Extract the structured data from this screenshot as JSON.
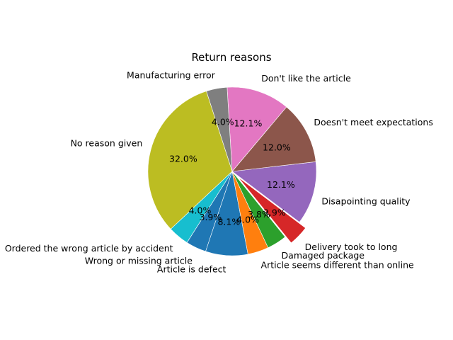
{
  "chart_data": {
    "type": "pie",
    "title": "Return reasons",
    "start_angle_deg": -37,
    "counterclock": true,
    "slices": [
      {
        "label": "Disapointing quality",
        "value": 12.1,
        "pct_label": "12.1%",
        "color": "#9467bd",
        "explode": false
      },
      {
        "label": "Doesn't meet expectations",
        "value": 12.0,
        "pct_label": "12.0%",
        "color": "#8c564b",
        "explode": false
      },
      {
        "label": "Don't like the article",
        "value": 12.1,
        "pct_label": "12.1%",
        "color": "#e377c2",
        "explode": false
      },
      {
        "label": "Manufacturing error",
        "value": 4.0,
        "pct_label": "4.0%",
        "color": "#7f7f7f",
        "explode": false
      },
      {
        "label": "No reason given",
        "value": 32.0,
        "pct_label": "32.0%",
        "color": "#bcbd22",
        "explode": false
      },
      {
        "label": "Ordered the wrong article by accident",
        "value": 4.0,
        "pct_label": "4.0%",
        "color": "#17becf",
        "explode": false
      },
      {
        "label": "Wrong or missing article",
        "value": 3.9,
        "pct_label": "3.9%",
        "color": "#1f77b4",
        "explode": false
      },
      {
        "label": "Article is defect",
        "value": 8.1,
        "pct_label": "8.1%",
        "color": "#1f77b4",
        "explode": false
      },
      {
        "label": "Article seems different than online",
        "value": 4.0,
        "pct_label": "4.0%",
        "color": "#ff7f0e",
        "explode": false
      },
      {
        "label": "Damaged package",
        "value": 3.8,
        "pct_label": "3.8%",
        "color": "#2ca02c",
        "explode": false
      },
      {
        "label": "Delivery took to long",
        "value": 3.9,
        "pct_label": "3.9%",
        "color": "#d62728",
        "explode": true
      }
    ]
  }
}
